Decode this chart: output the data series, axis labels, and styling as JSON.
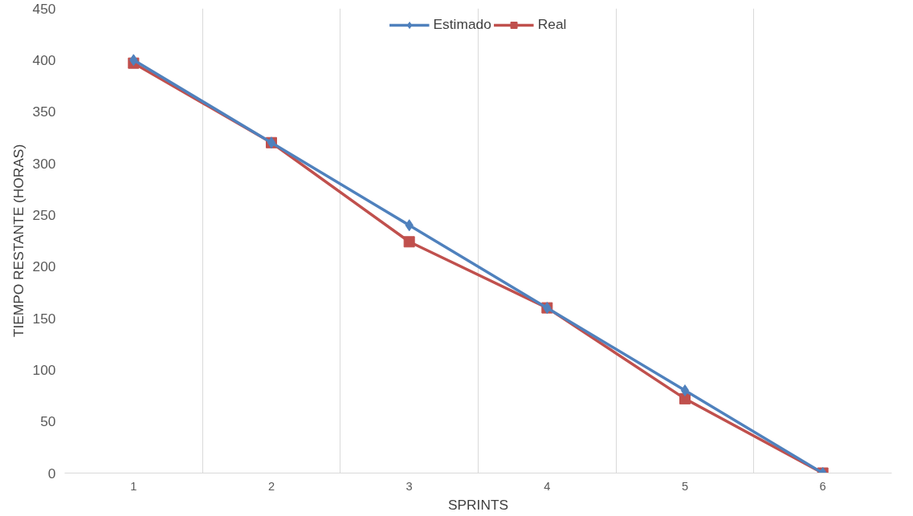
{
  "chart_data": {
    "type": "line",
    "xlabel": "SPRINTS",
    "ylabel": "TIEMPO RESTANTE (HORAS)",
    "categories": [
      "1",
      "2",
      "3",
      "4",
      "5",
      "6"
    ],
    "series": [
      {
        "name": "Estimado",
        "color": "#4f81bd",
        "marker": "diamond",
        "values": [
          400,
          320,
          240,
          160,
          80,
          0
        ]
      },
      {
        "name": "Real",
        "color": "#c0504d",
        "marker": "square",
        "values": [
          397,
          320,
          224,
          160,
          72,
          0
        ]
      }
    ],
    "ylim": [
      0,
      450
    ],
    "yticks": [
      0,
      50,
      100,
      150,
      200,
      250,
      300,
      350,
      400,
      450
    ],
    "grid": "x",
    "legend": "top",
    "line_style": "solid"
  }
}
